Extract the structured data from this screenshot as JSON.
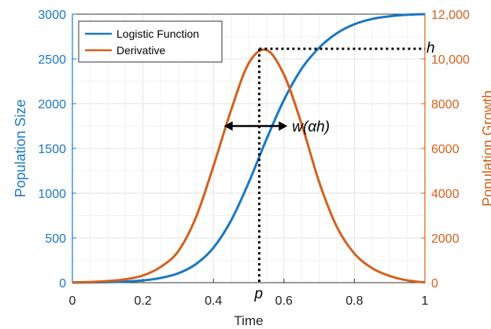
{
  "chart_data": {
    "type": "line",
    "xlabel": "Time",
    "ylabel_left": "Population Size",
    "ylabel_right": "Population Growth",
    "xlim": [
      0,
      1
    ],
    "ylim_left": [
      0,
      3000
    ],
    "ylim_right": [
      0,
      12000
    ],
    "x_ticks": [
      "0",
      "0.2",
      "0.4",
      "0.6",
      "0.8",
      "1"
    ],
    "y_left_ticks": [
      "0",
      "500",
      "1000",
      "1500",
      "2000",
      "2500",
      "3000"
    ],
    "y_right_ticks": [
      "0",
      "2000",
      "4000",
      "6000",
      "8000",
      "10,000",
      "12,000"
    ],
    "grid": true,
    "legend_position": "top-left",
    "series": [
      {
        "name": "Logistic Function",
        "axis": "left",
        "color": "#1a78c2",
        "x": [
          0,
          0.05,
          0.1,
          0.15,
          0.2,
          0.25,
          0.3,
          0.35,
          0.4,
          0.45,
          0.5,
          0.55,
          0.6,
          0.65,
          0.7,
          0.75,
          0.8,
          0.85,
          0.9,
          0.95,
          1
        ],
        "y": [
          1,
          3,
          6,
          12,
          25,
          52,
          104,
          206,
          390,
          693,
          1117,
          1597,
          2040,
          2389,
          2625,
          2786,
          2887,
          2946,
          2976,
          2993,
          3000
        ]
      },
      {
        "name": "Derivative",
        "axis": "right",
        "color": "#d4601c",
        "x": [
          0,
          0.05,
          0.1,
          0.15,
          0.2,
          0.25,
          0.3,
          0.35,
          0.4,
          0.45,
          0.5,
          0.55,
          0.6,
          0.65,
          0.7,
          0.75,
          0.8,
          0.85,
          0.9,
          0.95,
          1
        ],
        "y": [
          10,
          30,
          70,
          150,
          320,
          700,
          1400,
          2900,
          5200,
          7700,
          9800,
          10400,
          9300,
          7100,
          4500,
          2500,
          1300,
          650,
          300,
          100,
          10
        ]
      }
    ],
    "annotations": {
      "peak_label": "p",
      "peak_x": 0.53,
      "height_label": "h",
      "height_value": 10450,
      "width_label": "w(αh)",
      "width_x_from": 0.43,
      "width_x_to": 0.61,
      "width_level": 7000
    }
  }
}
